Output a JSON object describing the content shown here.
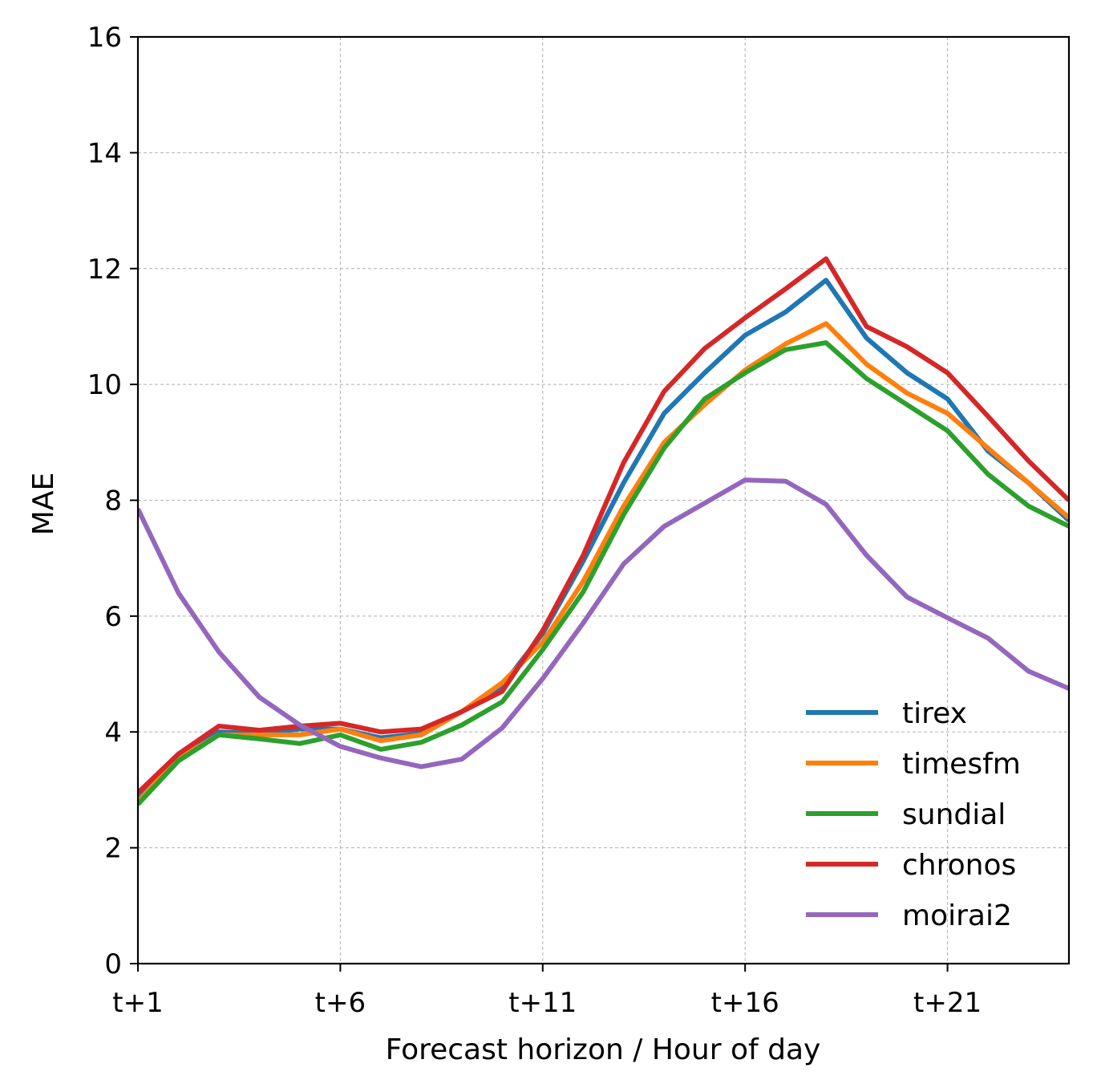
{
  "chart_data": {
    "type": "line",
    "title": "",
    "xlabel": "Forecast horizon / Hour of day",
    "ylabel": "MAE",
    "x": [
      1,
      2,
      3,
      4,
      5,
      6,
      7,
      8,
      9,
      10,
      11,
      12,
      13,
      14,
      15,
      16,
      17,
      18,
      19,
      20,
      21,
      22,
      23,
      24
    ],
    "x_ticks": [
      1,
      6,
      11,
      16,
      21
    ],
    "x_tick_labels": [
      "t+1",
      "t+6",
      "t+11",
      "t+16",
      "t+21"
    ],
    "xlim": [
      1,
      24
    ],
    "ylim": [
      0,
      16
    ],
    "y_ticks": [
      0,
      2,
      4,
      6,
      8,
      10,
      12,
      14,
      16
    ],
    "y_tick_labels": [
      "0",
      "2",
      "4",
      "6",
      "8",
      "10",
      "12",
      "14",
      "16"
    ],
    "grid": true,
    "legend_position": "bottom-right",
    "series": [
      {
        "name": "tirex",
        "color": "#1f77b4",
        "values": [
          2.85,
          3.55,
          4.0,
          3.97,
          4.05,
          4.05,
          3.9,
          3.97,
          4.35,
          4.8,
          5.7,
          6.95,
          8.3,
          9.5,
          10.2,
          10.85,
          11.25,
          11.8,
          10.8,
          10.2,
          9.75,
          8.85,
          8.3,
          7.65
        ]
      },
      {
        "name": "timesfm",
        "color": "#ff7f0e",
        "values": [
          2.8,
          3.55,
          3.95,
          3.95,
          3.95,
          4.05,
          3.85,
          3.95,
          4.35,
          4.85,
          5.55,
          6.6,
          7.9,
          9.0,
          9.65,
          10.25,
          10.7,
          11.05,
          10.35,
          9.85,
          9.5,
          8.9,
          8.3,
          7.7
        ]
      },
      {
        "name": "sundial",
        "color": "#2ca02c",
        "values": [
          2.75,
          3.5,
          3.95,
          3.88,
          3.8,
          3.95,
          3.7,
          3.82,
          4.12,
          4.52,
          5.42,
          6.42,
          7.75,
          8.9,
          9.75,
          10.2,
          10.6,
          10.72,
          10.1,
          9.65,
          9.2,
          8.45,
          7.9,
          7.55
        ]
      },
      {
        "name": "chronos",
        "color": "#d62728",
        "values": [
          2.95,
          3.62,
          4.1,
          4.03,
          4.1,
          4.15,
          4.0,
          4.05,
          4.35,
          4.7,
          5.75,
          7.05,
          8.65,
          9.88,
          10.62,
          11.15,
          11.65,
          12.17,
          11.0,
          10.65,
          10.2,
          9.45,
          8.68,
          8.0
        ]
      },
      {
        "name": "moirai2",
        "color": "#9467bd",
        "values": [
          7.85,
          6.4,
          5.38,
          4.6,
          4.12,
          3.75,
          3.55,
          3.4,
          3.53,
          4.07,
          4.92,
          5.88,
          6.9,
          7.55,
          7.95,
          8.35,
          8.33,
          7.93,
          7.05,
          6.33,
          5.97,
          5.62,
          5.05,
          4.75
        ]
      }
    ]
  }
}
